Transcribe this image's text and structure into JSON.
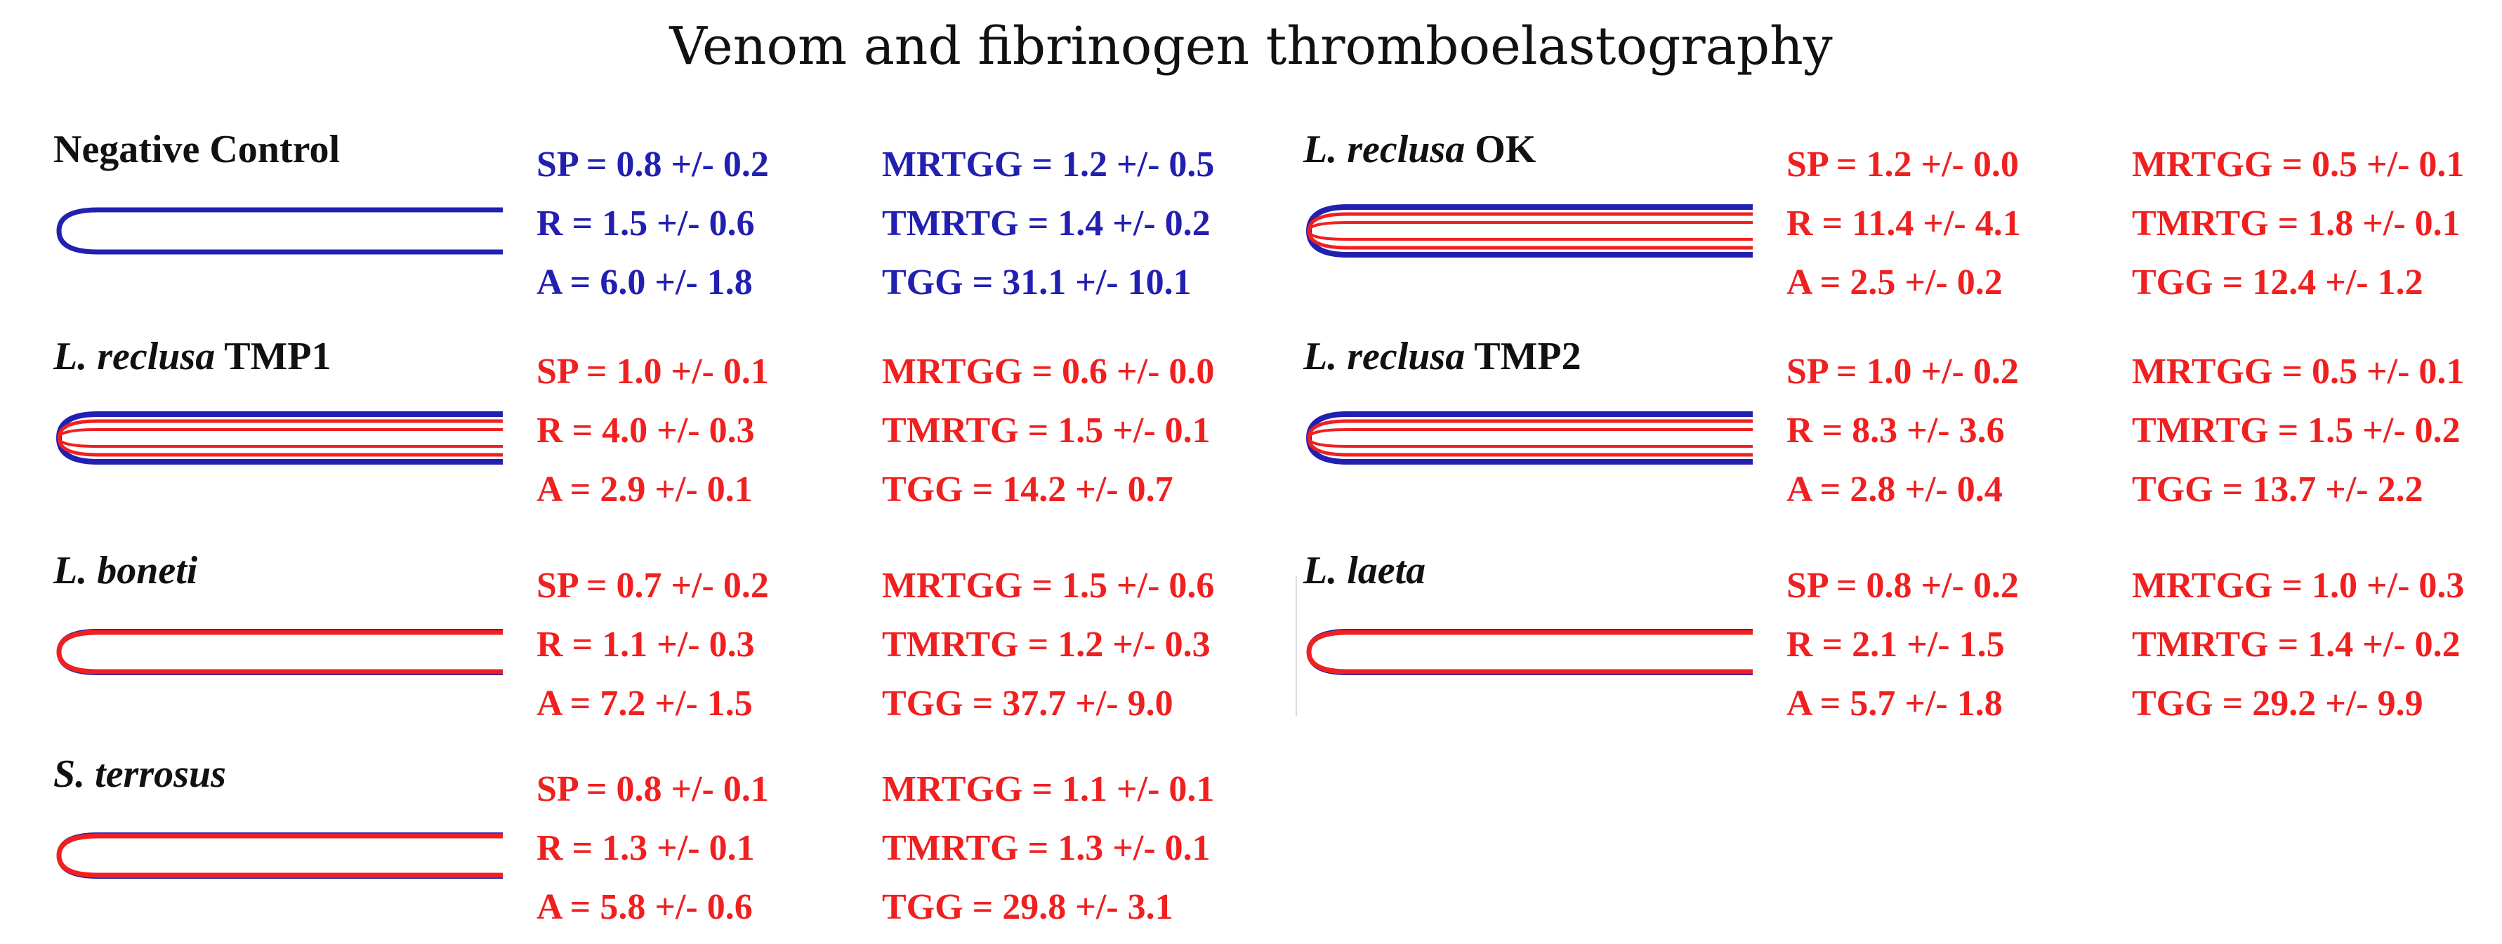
{
  "title": "Venom and fibrinogen thromboelastography",
  "colors": {
    "negative_control": "#2220b0",
    "venom": "#f02020",
    "text": "#111111"
  },
  "panels": [
    {
      "label_species": "",
      "label_suffix": "Negative Control",
      "trace": "blue",
      "sp": "SP = 0.8 +/- 0.2",
      "r": "R = 1.5 +/- 0.6",
      "a": "A = 6.0 +/- 1.8",
      "mrtgg": "MRTGG = 1.2 +/- 0.5",
      "tmrtg": "TMRTG = 1.4 +/- 0.2",
      "tgg": "TGG = 31.1 +/- 10.1"
    },
    {
      "label_species": "L. reclusa",
      "label_suffix": " OK",
      "trace": "overlay",
      "sp": "SP = 1.2 +/- 0.0",
      "r": "R = 11.4 +/- 4.1",
      "a": "A = 2.5 +/- 0.2",
      "mrtgg": "MRTGG = 0.5 +/- 0.1",
      "tmrtg": "TMRTG = 1.8 +/- 0.1",
      "tgg": "TGG = 12.4 +/- 1.2"
    },
    {
      "label_species": "L. reclusa",
      "label_suffix": " TMP1",
      "trace": "overlay",
      "sp": "SP = 1.0 +/- 0.1",
      "r": "R = 4.0 +/- 0.3",
      "a": "A = 2.9 +/- 0.1",
      "mrtgg": "MRTGG = 0.6 +/- 0.0",
      "tmrtg": "TMRTG = 1.5 +/- 0.1",
      "tgg": "TGG = 14.2 +/- 0.7"
    },
    {
      "label_species": "L. reclusa",
      "label_suffix": " TMP2",
      "trace": "overlay",
      "sp": "SP = 1.0 +/- 0.2",
      "r": "R = 8.3 +/- 3.6",
      "a": "A = 2.8 +/- 0.4",
      "mrtgg": "MRTGG = 0.5 +/- 0.1",
      "tmrtg": "TMRTG = 1.5 +/- 0.2",
      "tgg": "TGG = 13.7 +/- 2.2"
    },
    {
      "label_species": "L. boneti",
      "label_suffix": "",
      "trace": "red",
      "sp": "SP = 0.7 +/- 0.2",
      "r": "R = 1.1 +/- 0.3",
      "a": "A = 7.2 +/- 1.5",
      "mrtgg": "MRTGG = 1.5 +/- 0.6",
      "tmrtg": "TMRTG = 1.2 +/- 0.3",
      "tgg": "TGG = 37.7 +/- 9.0"
    },
    {
      "label_species": "L. laeta",
      "label_suffix": "",
      "trace": "red",
      "sp": "SP = 0.8 +/- 0.2",
      "r": "R = 2.1 +/- 1.5",
      "a": "A = 5.7 +/- 1.8",
      "mrtgg": "MRTGG = 1.0 +/- 0.3",
      "tmrtg": "TMRTG = 1.4 +/- 0.2",
      "tgg": "TGG = 29.2 +/- 9.9"
    },
    {
      "label_species": "S. terrosus",
      "label_suffix": "",
      "trace": "red",
      "sp": "SP = 0.8 +/- 0.1",
      "r": "R = 1.3 +/- 0.1",
      "a": "A = 5.8 +/- 0.6",
      "mrtgg": "MRTGG = 1.1 +/- 0.1",
      "tmrtg": "TMRTG = 1.3 +/- 0.1",
      "tgg": "TGG = 29.8 +/- 3.1"
    }
  ]
}
